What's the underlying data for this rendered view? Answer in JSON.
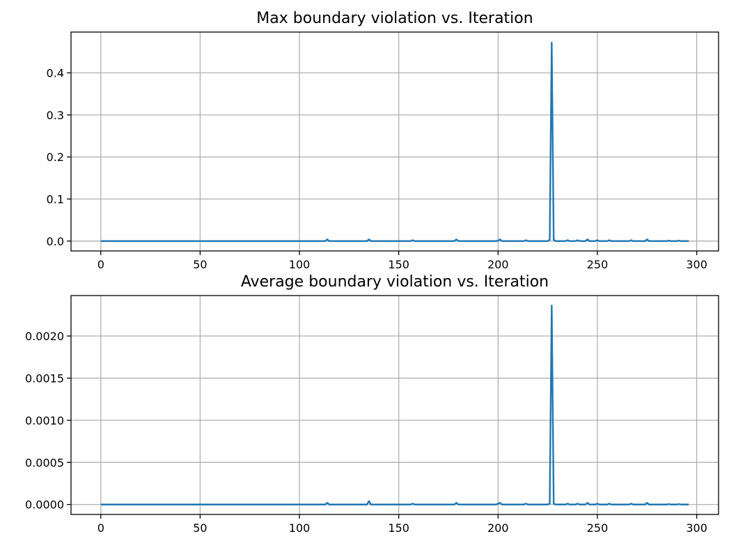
{
  "chart_data": [
    {
      "type": "line",
      "title": "Max boundary violation vs. Iteration",
      "xlabel": "",
      "ylabel": "",
      "xlim": [
        -15,
        311
      ],
      "ylim": [
        -0.0235,
        0.497
      ],
      "xticks": [
        0,
        50,
        100,
        150,
        200,
        250,
        300
      ],
      "xtick_labels": [
        "0",
        "50",
        "100",
        "150",
        "200",
        "250",
        "300"
      ],
      "yticks": [
        0.0,
        0.1,
        0.2,
        0.3,
        0.4
      ],
      "ytick_labels": [
        "0.0",
        "0.1",
        "0.2",
        "0.3",
        "0.4"
      ],
      "grid": true,
      "color": "#1f77b4",
      "x": [
        0,
        50,
        100,
        113,
        114,
        115,
        134,
        135,
        136,
        156,
        157,
        158,
        178,
        179,
        180,
        199,
        200,
        201,
        202,
        213,
        214,
        215,
        225,
        226,
        227,
        228,
        229,
        234,
        235,
        236,
        239,
        240,
        241,
        244,
        245,
        246,
        249,
        250,
        251,
        255,
        256,
        257,
        266,
        267,
        268,
        274,
        275,
        276,
        285,
        286,
        287,
        290,
        291,
        292,
        296
      ],
      "y": [
        0,
        0,
        0,
        0,
        0.004,
        0,
        0,
        0.004,
        0,
        0,
        0.002,
        0,
        0,
        0.004,
        0,
        0,
        0.001,
        0.004,
        0,
        0,
        0.002,
        0,
        0,
        0.003,
        0.472,
        0.003,
        0,
        0,
        0.002,
        0,
        0,
        0.002,
        0,
        0,
        0.004,
        0,
        0,
        0.002,
        0,
        0,
        0.002,
        0,
        0,
        0.002,
        0,
        0,
        0.004,
        0,
        0,
        0.001,
        0,
        0,
        0.001,
        0,
        0
      ]
    },
    {
      "type": "line",
      "title": "Average boundary violation vs. Iteration",
      "xlabel": "",
      "ylabel": "",
      "xlim": [
        -15,
        311
      ],
      "ylim": [
        -0.000118,
        0.00248
      ],
      "xticks": [
        0,
        50,
        100,
        150,
        200,
        250,
        300
      ],
      "xtick_labels": [
        "0",
        "50",
        "100",
        "150",
        "200",
        "250",
        "300"
      ],
      "yticks": [
        0.0,
        0.0005,
        0.001,
        0.0015,
        0.002
      ],
      "ytick_labels": [
        "0.0000",
        "0.0005",
        "0.0010",
        "0.0015",
        "0.0020"
      ],
      "grid": true,
      "color": "#1f77b4",
      "x": [
        0,
        50,
        100,
        113,
        114,
        115,
        134,
        135,
        136,
        156,
        157,
        158,
        178,
        179,
        180,
        199,
        200,
        201,
        202,
        213,
        214,
        215,
        225,
        226,
        227,
        228,
        229,
        234,
        235,
        236,
        239,
        240,
        241,
        244,
        245,
        246,
        249,
        250,
        251,
        255,
        256,
        257,
        266,
        267,
        268,
        274,
        275,
        276,
        285,
        286,
        287,
        290,
        291,
        292,
        296
      ],
      "y": [
        0,
        0,
        0,
        0,
        2e-05,
        0,
        0,
        4e-05,
        0,
        0,
        1e-05,
        0,
        0,
        2e-05,
        0,
        0,
        1e-05,
        2e-05,
        0,
        0,
        1e-05,
        0,
        0,
        1e-05,
        0.00236,
        1e-05,
        0,
        0,
        1e-05,
        0,
        0,
        1e-05,
        0,
        0,
        2e-05,
        0,
        0,
        1e-05,
        0,
        0,
        1e-05,
        0,
        0,
        1e-05,
        0,
        0,
        2e-05,
        0,
        0,
        5e-06,
        0,
        0,
        5e-06,
        0,
        0
      ]
    }
  ]
}
